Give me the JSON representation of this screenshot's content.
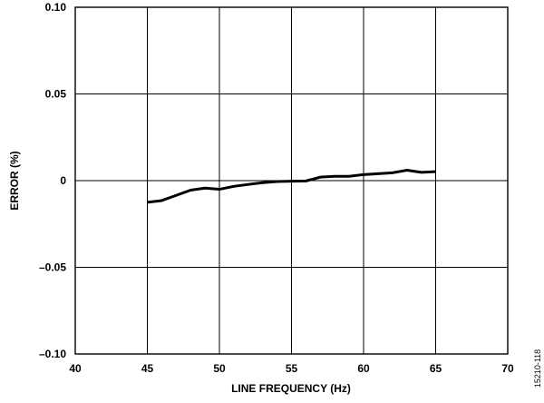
{
  "chart_data": {
    "type": "line",
    "xlabel": "LINE FREQUENCY (Hz)",
    "ylabel": "ERROR (%)",
    "xlim": [
      40,
      70
    ],
    "ylim": [
      -0.1,
      0.1
    ],
    "x_ticks": [
      40,
      45,
      50,
      55,
      60,
      65,
      70
    ],
    "x_tick_labels": [
      "40",
      "45",
      "50",
      "55",
      "60",
      "65",
      "70"
    ],
    "y_ticks": [
      0.1,
      0.05,
      0,
      -0.05,
      -0.1
    ],
    "y_tick_labels": [
      "0.10",
      "0.05",
      "0",
      "–0.05",
      "–0.10"
    ],
    "grid": true,
    "line_color": "#000000",
    "series": [
      {
        "x": [
          45,
          46,
          47,
          48,
          49,
          50,
          51,
          52,
          53,
          54,
          55,
          56,
          57,
          58,
          59,
          60,
          61,
          62,
          63,
          64,
          65
        ],
        "values": [
          -0.0125,
          -0.0115,
          -0.0085,
          -0.0055,
          -0.0043,
          -0.005,
          -0.0033,
          -0.0022,
          -0.0012,
          -0.0005,
          -0.0003,
          -0.0002,
          0.002,
          0.0025,
          0.0025,
          0.0035,
          0.004,
          0.0045,
          0.006,
          0.0048,
          0.0052
        ]
      }
    ]
  },
  "figure_id": "15210-118"
}
